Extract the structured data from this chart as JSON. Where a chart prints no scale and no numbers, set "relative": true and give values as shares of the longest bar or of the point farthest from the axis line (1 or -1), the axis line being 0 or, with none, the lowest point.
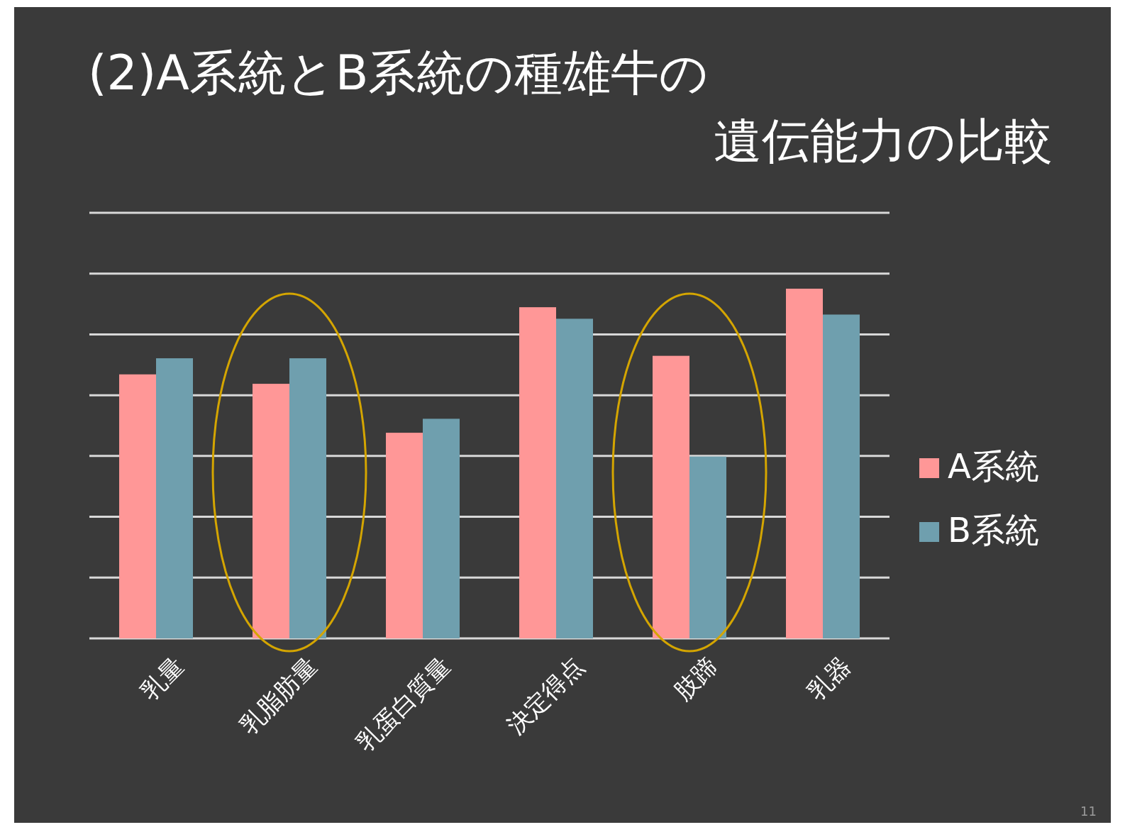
{
  "chart_data": {
    "type": "bar",
    "title": "(2)A系統とB系統の種雄牛の遺伝能力の比較",
    "categories": [
      "乳量",
      "乳脂肪量",
      "乳蛋白質量",
      "決定得点",
      "肢蹄",
      "乳器"
    ],
    "relative": true,
    "grid": "y",
    "legend": "right",
    "series": [
      {
        "name": "A系統",
        "color": "#ff9797",
        "values": [
          0.755,
          0.728,
          0.588,
          0.947,
          0.808,
          1
        ]
      },
      {
        "name": "B系統",
        "color": "#6f9fae",
        "values": [
          0.801,
          0.801,
          0.628,
          0.914,
          0.52,
          0.926
        ]
      }
    ],
    "annotations": [
      "11"
    ]
  }
}
